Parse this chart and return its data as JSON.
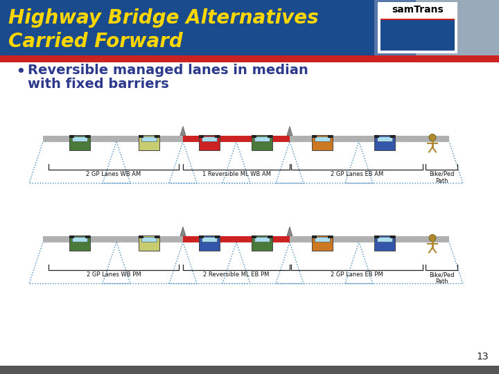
{
  "title_line1": "Highway Bridge Alternatives",
  "title_line2": "Carried Forward",
  "title_color": "#FFD700",
  "title_bg_dark": "#1a4b8c",
  "title_bg_mid": "#5577aa",
  "title_bg_light": "#99aabb",
  "red_bar_color": "#cc2222",
  "slide_bg": "#ffffff",
  "bullet_text_line1": "Reversible managed lanes in median",
  "bullet_text_line2": "with fixed barriers",
  "bullet_color": "#2d3a8c",
  "footer_color": "#555555",
  "page_number": "13",
  "am_labels": [
    "2 GP Lanes WB AM",
    "1 Reversible ML WB AM",
    "2 GP Lanes EB AM",
    "Bike/Ped\nPath"
  ],
  "pm_labels": [
    "2 GP Lanes WB PM",
    "2 Reversible ML EB PM",
    "2 GP Lanes EB PM",
    "Bike/Ped\nPath"
  ],
  "samtrans_text": "samTrans",
  "samtrans_red": "#cc2222",
  "samtrans_blue": "#1a4b8c",
  "road_color": "#b0b0b0",
  "trap_color": "#4488bb",
  "car_colors_am": [
    "#4a7a3a",
    "#c8cc70",
    "#cc2222",
    "#4a7a3a",
    "#cc7722",
    "#3355aa"
  ],
  "car_colors_pm": [
    "#4a7a3a",
    "#c8cc70",
    "#3355aa",
    "#4a7a3a",
    "#cc7722",
    "#3355aa"
  ],
  "ped_color": "#b08830"
}
